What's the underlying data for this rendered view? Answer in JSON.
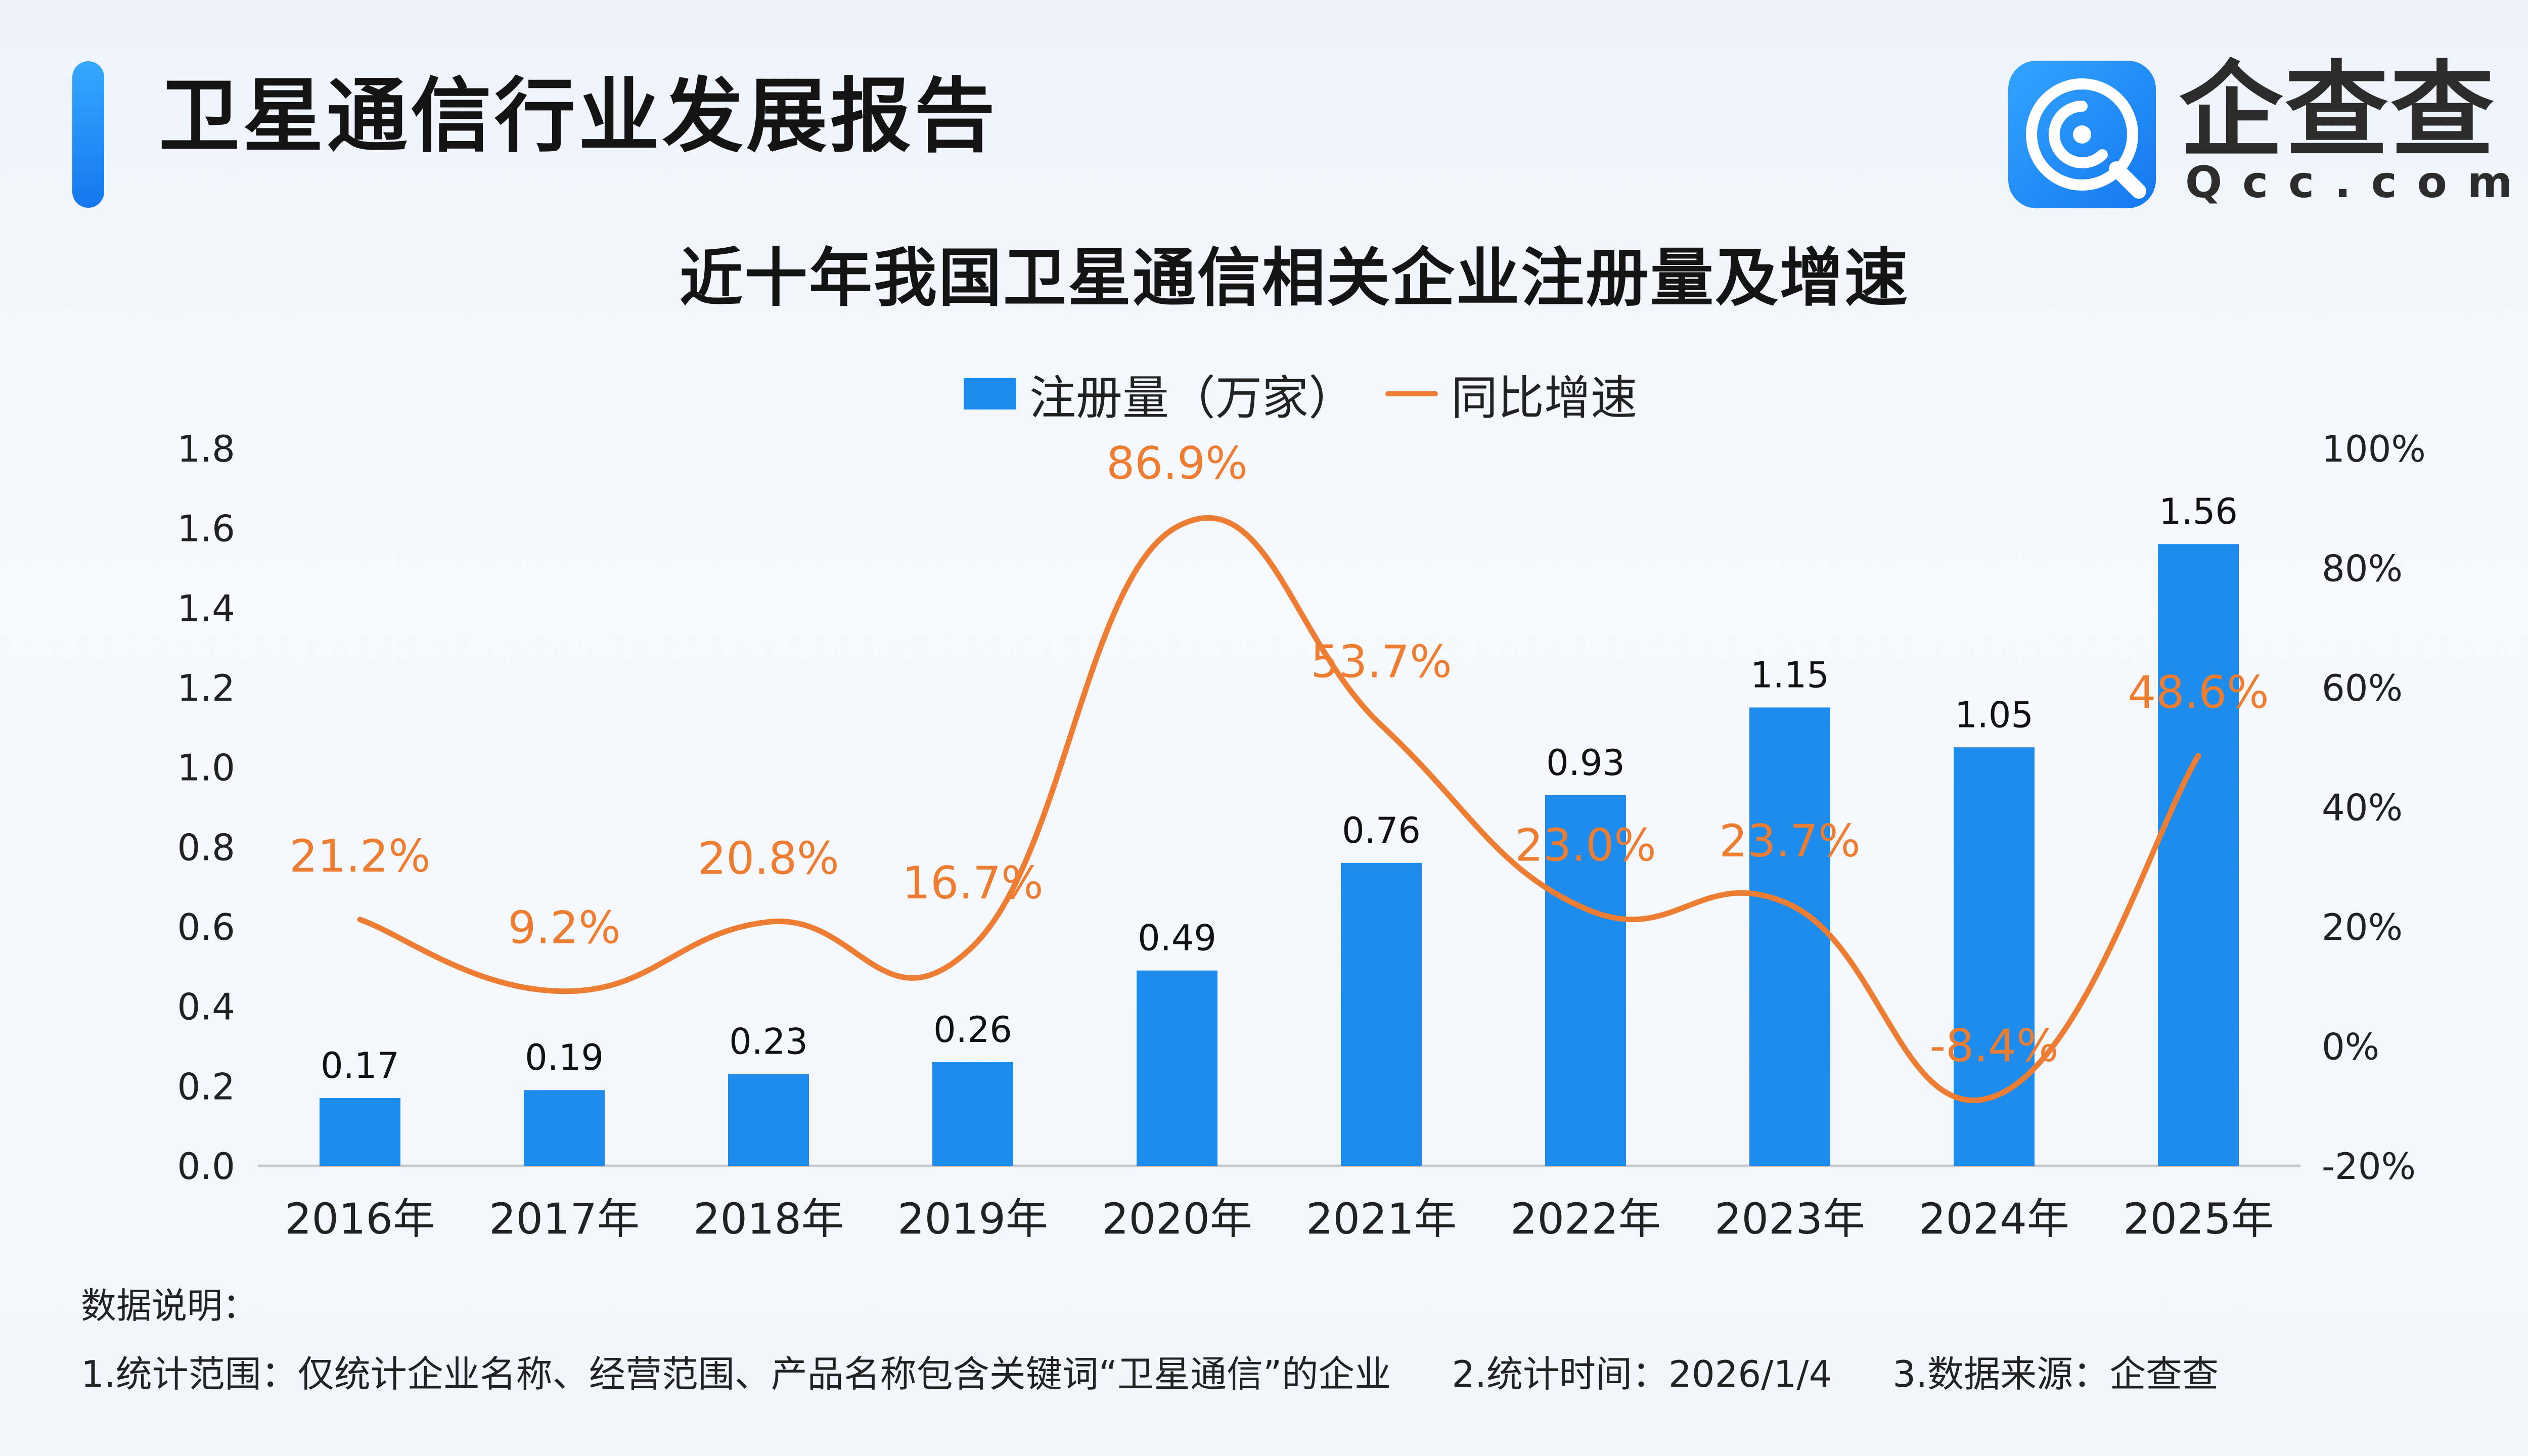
{
  "header": {
    "title": "卫星通信行业发展报告",
    "logo_cn": "企查查",
    "logo_en": "Qcc.com"
  },
  "chart_data": {
    "type": "bar",
    "title": "近十年我国卫星通信相关企业注册量及增速",
    "categories": [
      "2016年",
      "2017年",
      "2018年",
      "2019年",
      "2020年",
      "2021年",
      "2022年",
      "2023年",
      "2024年",
      "2025年"
    ],
    "series": [
      {
        "name": "注册量（万家）",
        "type": "bar",
        "axis": "left",
        "color": "#1d8cec",
        "values": [
          0.17,
          0.19,
          0.23,
          0.26,
          0.49,
          0.76,
          0.93,
          1.15,
          1.05,
          1.56
        ],
        "labels": [
          "0.17",
          "0.19",
          "0.23",
          "0.26",
          "0.49",
          "0.76",
          "0.93",
          "1.15",
          "1.05",
          "1.56"
        ]
      },
      {
        "name": "同比增速",
        "type": "line",
        "axis": "right",
        "color": "#ec7d32",
        "values": [
          21.2,
          9.2,
          20.8,
          16.7,
          86.9,
          53.7,
          23.0,
          23.7,
          -8.4,
          48.6
        ],
        "labels": [
          "21.2%",
          "9.2%",
          "20.8%",
          "16.7%",
          "86.9%",
          "53.7%",
          "23.0%",
          "23.7%",
          "-8.4%",
          "48.6%"
        ]
      }
    ],
    "y_left": {
      "range": [
        0,
        1.8
      ],
      "ticks": [
        "0.0",
        "0.2",
        "0.4",
        "0.6",
        "0.8",
        "1.0",
        "1.2",
        "1.4",
        "1.6",
        "1.8"
      ]
    },
    "y_right": {
      "range": [
        -20,
        100
      ],
      "ticks": [
        "-20%",
        "0%",
        "20%",
        "40%",
        "60%",
        "80%",
        "100%"
      ]
    },
    "legend_position": "top-center",
    "grid": false
  },
  "notes": {
    "heading": "数据说明：",
    "scope": "1.统计范围：仅统计企业名称、经营范围、产品名称包含关键词“卫星通信”的企业",
    "time": "2.统计时间：2026/1/4",
    "source": "3.数据来源：企查查"
  }
}
